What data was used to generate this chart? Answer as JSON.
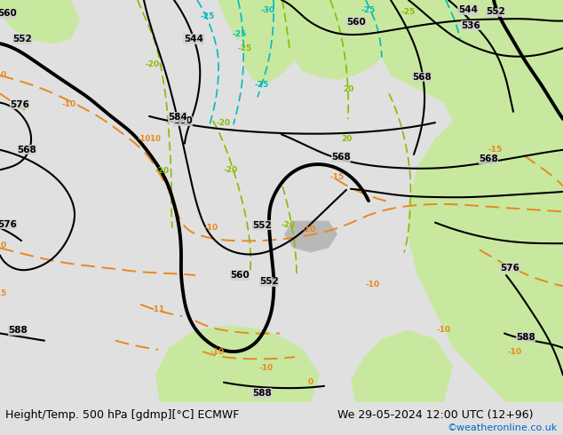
{
  "title_left": "Height/Temp. 500 hPa [gdmp][°C] ECMWF",
  "title_right": "We 29-05-2024 12:00 UTC (12+96)",
  "credit": "©weatheronline.co.uk",
  "credit_color": "#0066cc",
  "bg_color_map": "#d8d8d8",
  "land_green": "#c8e8a0",
  "land_gray": "#b8b8b8",
  "title_fontsize": 9.0,
  "credit_fontsize": 8.0,
  "fig_width": 6.34,
  "fig_height": 4.9,
  "dpi": 100,
  "orange_color": "#e88820",
  "green_temp_color": "#88bb00",
  "cyan_temp_color": "#00bbbb",
  "black_contour_thin": 1.5,
  "black_contour_thick": 2.8
}
